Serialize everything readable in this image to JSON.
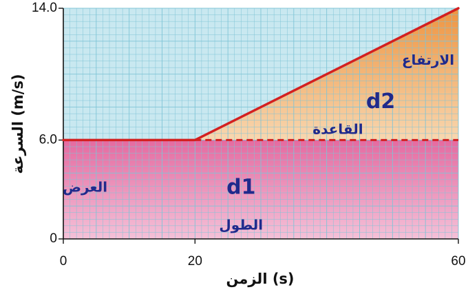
{
  "chart_data": {
    "type": "line",
    "xlabel": "الزمن (s)",
    "ylabel": "السرعة (m/s)",
    "xlim": [
      0,
      60
    ],
    "ylim": [
      0,
      14
    ],
    "x_ticks": [
      "0",
      "20",
      "60"
    ],
    "y_ticks": [
      "0",
      "6.0",
      "14.0"
    ],
    "grid": true,
    "series": [
      {
        "x": [
          0,
          20,
          60
        ],
        "y": [
          6,
          6,
          14
        ],
        "color": "#d32020"
      }
    ],
    "dashed_line": {
      "x": [
        20,
        60
      ],
      "y": [
        6,
        6
      ],
      "color": "#d32020"
    },
    "regions": [
      {
        "label": "d1",
        "x": [
          0,
          60
        ],
        "y_bottom": [
          0,
          0
        ],
        "y_top": [
          6,
          6
        ],
        "color": "#e879a8"
      },
      {
        "label": "d2",
        "x": [
          20,
          60
        ],
        "y_bottom": [
          6,
          6
        ],
        "y_top": [
          6,
          14
        ],
        "color": "#f0a058"
      }
    ],
    "annotations": [
      {
        "text": "d1",
        "x": 27,
        "y": 3.1,
        "size": 30,
        "color": "#1f2a8c"
      },
      {
        "text": "العرض",
        "x": 3.3,
        "y": 3.1,
        "size": 20,
        "color": "#1f2a8c"
      },
      {
        "text": "الطول",
        "x": 27,
        "y": 0.8,
        "size": 20,
        "color": "#1f2a8c"
      },
      {
        "text": "d2",
        "x": 48.2,
        "y": 8.3,
        "size": 30,
        "color": "#1f2a8c"
      },
      {
        "text": "القاعدة",
        "x": 41.7,
        "y": 6.6,
        "size": 20,
        "color": "#1f2a8c"
      },
      {
        "text": "الارتفاع",
        "x": 55.4,
        "y": 10.8,
        "size": 20,
        "color": "#1f2a8c"
      }
    ]
  },
  "colors": {
    "grid_background": "#c9e8f0",
    "grid_line": "#7fc4d6",
    "axis": "#111111",
    "label_blue": "#1f2a8c"
  }
}
